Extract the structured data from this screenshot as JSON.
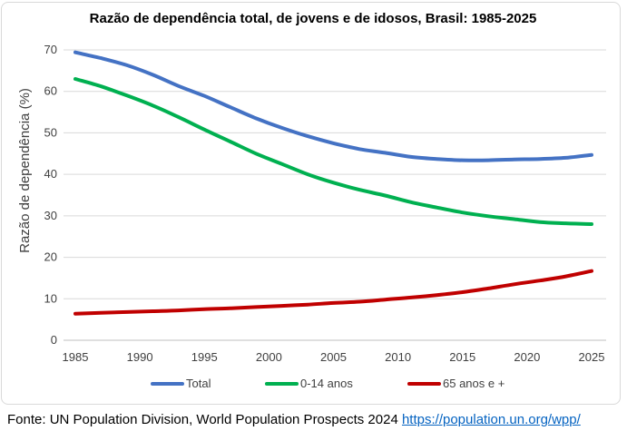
{
  "chart_data": {
    "type": "line",
    "title": "Razão de dependência total, de jovens e de idosos, Brasil: 1985-2025",
    "xlabel": "",
    "ylabel": "Razão de dependência (%)",
    "xlim": [
      1985,
      2025
    ],
    "ylim": [
      0,
      70
    ],
    "x_ticks": [
      1985,
      1990,
      1995,
      2000,
      2005,
      2010,
      2015,
      2020,
      2025
    ],
    "y_ticks": [
      0,
      10,
      20,
      30,
      40,
      50,
      60,
      70
    ],
    "grid": "horizontal",
    "legend_position": "bottom",
    "x": [
      1985,
      1987,
      1989,
      1991,
      1993,
      1995,
      1997,
      1999,
      2001,
      2003,
      2005,
      2007,
      2009,
      2011,
      2013,
      2015,
      2017,
      2019,
      2021,
      2023,
      2025
    ],
    "series": [
      {
        "name": "Total",
        "color": "#4472c4",
        "values": [
          69.4,
          68.0,
          66.3,
          64.0,
          61.3,
          58.9,
          56.2,
          53.5,
          51.2,
          49.2,
          47.5,
          46.1,
          45.2,
          44.2,
          43.7,
          43.4,
          43.4,
          43.6,
          43.7,
          44.0,
          44.7
        ]
      },
      {
        "name": "0-14 anos",
        "color": "#00b050",
        "values": [
          63.0,
          61.2,
          59.0,
          56.6,
          53.8,
          50.8,
          47.9,
          45.0,
          42.5,
          40.0,
          38.0,
          36.3,
          34.9,
          33.3,
          32.0,
          30.8,
          29.9,
          29.2,
          28.5,
          28.2,
          28.0
        ]
      },
      {
        "name": "65 anos e +",
        "color": "#c00000",
        "values": [
          6.4,
          6.6,
          6.8,
          7.0,
          7.2,
          7.5,
          7.7,
          8.0,
          8.3,
          8.6,
          9.0,
          9.3,
          9.8,
          10.3,
          10.9,
          11.6,
          12.5,
          13.5,
          14.4,
          15.4,
          16.7
        ]
      }
    ]
  },
  "source": {
    "text": "Fonte: UN Population Division, World Population Prospects 2024",
    "link_text": "https://population.un.org/wpp/"
  }
}
